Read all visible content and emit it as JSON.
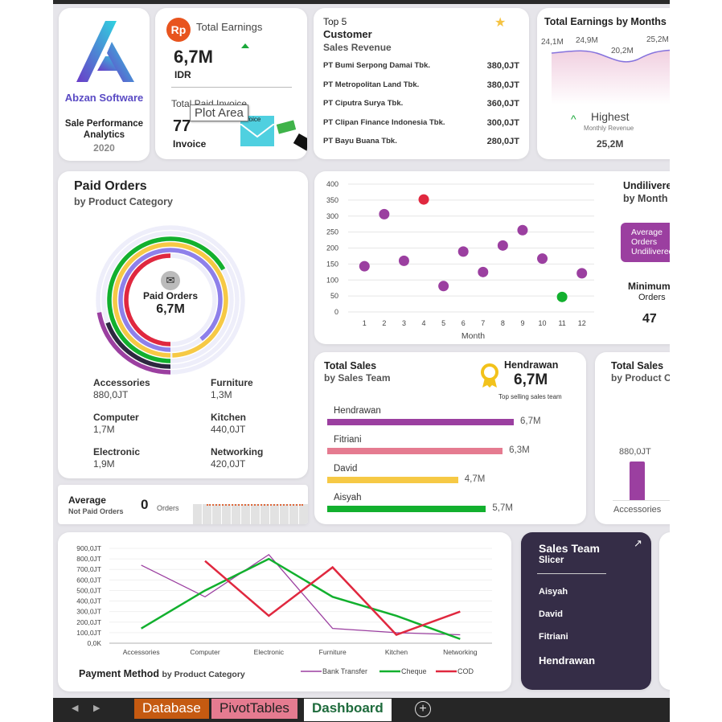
{
  "logo": {
    "company": "Abzan Software",
    "title": "Sale Performance Analytics",
    "year": "2020"
  },
  "earnings": {
    "icon_label": "Rp",
    "title": "Total Earnings",
    "value": "6,7M",
    "unit": "IDR",
    "invoice_title": "Total Paid Invoice",
    "invoice_value": "77",
    "invoice_unit": "Invoice",
    "envelope_label": "Invoice",
    "tooltip": "Plot Area"
  },
  "top5": {
    "line1": "Top 5",
    "line2": "Customer",
    "line3": "Sales Revenue",
    "rows": [
      {
        "name": "PT Bumi Serpong Damai Tbk.",
        "value": "380,0JT"
      },
      {
        "name": "PT Metropolitan Land Tbk.",
        "value": "380,0JT"
      },
      {
        "name": "PT Ciputra Surya Tbk.",
        "value": "360,0JT"
      },
      {
        "name": "PT Clipan Finance Indonesia Tbk.",
        "value": "300,0JT"
      },
      {
        "name": "PT Bayu Buana Tbk.",
        "value": "280,0JT"
      }
    ]
  },
  "monthly": {
    "title": "Total Earnings by Months",
    "labels": [
      "24,1M",
      "24,9M",
      "20,2M",
      "25,2M"
    ],
    "highest": "Highest",
    "highest_sub": "Monthly Revenue",
    "highest_value": "25,2M"
  },
  "paid_orders": {
    "title": "Paid Orders",
    "subtitle": "by Product Category",
    "center_label": "Paid Orders",
    "center_value": "6,7M",
    "categories": [
      {
        "name": "Accessories",
        "value": "880,0JT"
      },
      {
        "name": "Furniture",
        "value": "1,3M"
      },
      {
        "name": "Computer",
        "value": "1,7M"
      },
      {
        "name": "Kitchen",
        "value": "440,0JT"
      },
      {
        "name": "Electronic",
        "value": "1,9M"
      },
      {
        "name": "Networking",
        "value": "420,0JT"
      }
    ]
  },
  "avg_not_paid": {
    "title": "Average",
    "subtitle": "Not Paid Orders",
    "value": "0",
    "unit": "Orders"
  },
  "undelivered": {
    "title1": "Undilivered",
    "title2": "by Month",
    "badge": [
      "Average",
      "Orders",
      "Undilivered"
    ],
    "min_title": "Minimum",
    "min_sub": "Orders",
    "min_value": "47"
  },
  "sales_team": {
    "title": "Total Sales",
    "subtitle": "by Sales Team",
    "top_name": "Hendrawan",
    "top_value": "6,7M",
    "top_caption": "Top selling sales team",
    "bars": [
      {
        "name": "Hendrawan",
        "value": 6.7,
        "label": "6,7M",
        "color": "#9b3fa0"
      },
      {
        "name": "Fitriani",
        "value": 6.3,
        "label": "6,3M",
        "color": "#e57b90"
      },
      {
        "name": "David",
        "value": 4.7,
        "label": "4,7M",
        "color": "#f6c945"
      },
      {
        "name": "Aisyah",
        "value": 5.7,
        "label": "5,7M",
        "color": "#12b02e"
      }
    ]
  },
  "sales_product": {
    "title": "Total Sales",
    "subtitle": "by Product Category",
    "bar_label": "880,0JT",
    "bar_category": "Accessories"
  },
  "slicer": {
    "title": "Sales Team",
    "subtitle": "Slicer",
    "items": [
      "Aisyah",
      "David",
      "Fitriani",
      "Hendrawan"
    ]
  },
  "tabs": {
    "items": [
      "Database",
      "PivotTables",
      "Dashboard"
    ],
    "active": "Dashboard"
  },
  "chart_data": [
    {
      "type": "scatter",
      "xlabel": "Month",
      "ylabel": "",
      "x": [
        1,
        2,
        3,
        4,
        5,
        6,
        7,
        8,
        9,
        10,
        11,
        12
      ],
      "y": [
        143,
        306,
        160,
        352,
        81,
        189,
        125,
        208,
        256,
        167,
        47,
        121
      ],
      "ylim": [
        0,
        400
      ],
      "yticks": [
        0,
        50,
        100,
        150,
        200,
        250,
        300,
        350,
        400
      ],
      "highlight": {
        "max": "#e0283f",
        "min": "#12b02e",
        "other": "#9b3fa0"
      }
    },
    {
      "type": "line",
      "title": "Payment Method",
      "subtitle": "by Product Category",
      "categories": [
        "Accessories",
        "Computer",
        "Electronic",
        "Furniture",
        "Kitchen",
        "Networking"
      ],
      "yticks": [
        "0,0K",
        "100,0JT",
        "200,0JT",
        "300,0JT",
        "400,0JT",
        "500,0JT",
        "600,0JT",
        "700,0JT",
        "800,0JT",
        "900,0JT"
      ],
      "ylim": [
        0,
        900
      ],
      "legend": "bottom-right",
      "series": [
        {
          "name": "Bank Transfer",
          "color": "#9b3fa0",
          "values": [
            740,
            440,
            840,
            140,
            100,
            80
          ]
        },
        {
          "name": "Cheque",
          "color": "#12b02e",
          "values": [
            140,
            500,
            800,
            440,
            260,
            40
          ]
        },
        {
          "name": "COD",
          "color": "#e0283f",
          "values": [
            null,
            780,
            260,
            720,
            80,
            300
          ]
        }
      ]
    }
  ]
}
